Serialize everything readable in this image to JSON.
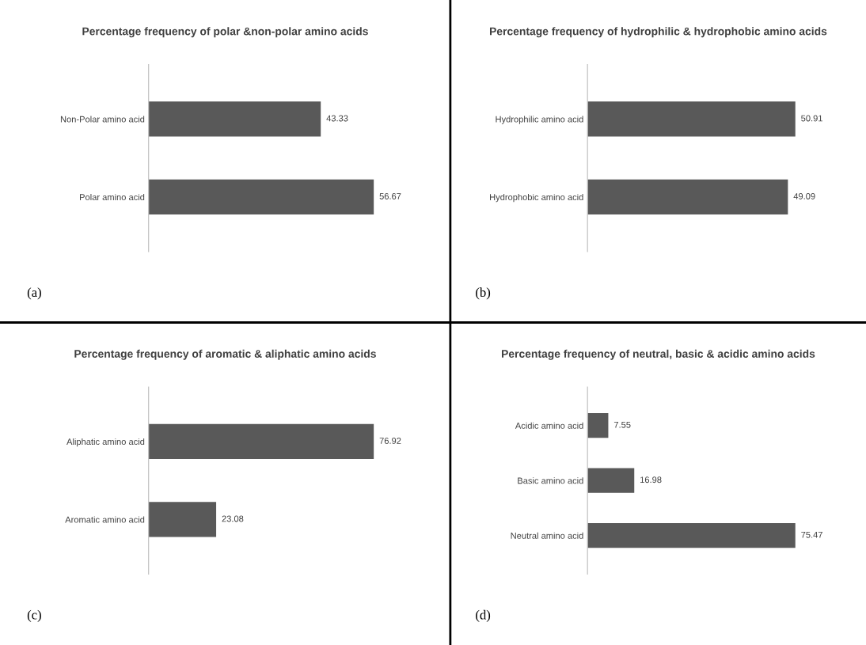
{
  "chart_data": [
    {
      "type": "bar",
      "orientation": "horizontal",
      "title": "Percentage frequency of polar &non-polar amino acids",
      "categories": [
        "Non-Polar amino acid",
        "Polar amino acid"
      ],
      "values": [
        43.33,
        56.67
      ],
      "color": "#595959",
      "data_labels": true,
      "tick_labels": "y",
      "grid": false,
      "legend": false,
      "annotations": [
        "(a)"
      ]
    },
    {
      "type": "bar",
      "orientation": "horizontal",
      "title": "Percentage frequency of hydrophilic & hydrophobic amino acids",
      "categories": [
        "Hydrophilic amino acid",
        "Hydrophobic amino acid"
      ],
      "values": [
        50.91,
        49.09
      ],
      "color": "#595959",
      "data_labels": true,
      "tick_labels": "y",
      "grid": false,
      "legend": false,
      "annotations": [
        "(b)"
      ]
    },
    {
      "type": "bar",
      "orientation": "horizontal",
      "title": "Percentage frequency of aromatic & aliphatic amino acids",
      "categories": [
        "Aliphatic amino acid",
        "Aromatic amino acid"
      ],
      "values": [
        76.92,
        23.08
      ],
      "color": "#595959",
      "data_labels": true,
      "tick_labels": "y",
      "grid": false,
      "legend": false,
      "annotations": [
        "(c)"
      ]
    },
    {
      "type": "bar",
      "orientation": "horizontal",
      "title": "Percentage frequency of neutral, basic & acidic amino acids",
      "categories": [
        "Acidic amino acid",
        "Basic amino acid",
        "Neutral amino acid"
      ],
      "values": [
        7.55,
        16.98,
        75.47
      ],
      "color": "#595959",
      "data_labels": true,
      "tick_labels": "y",
      "grid": false,
      "legend": false,
      "annotations": [
        "(d)"
      ]
    }
  ]
}
